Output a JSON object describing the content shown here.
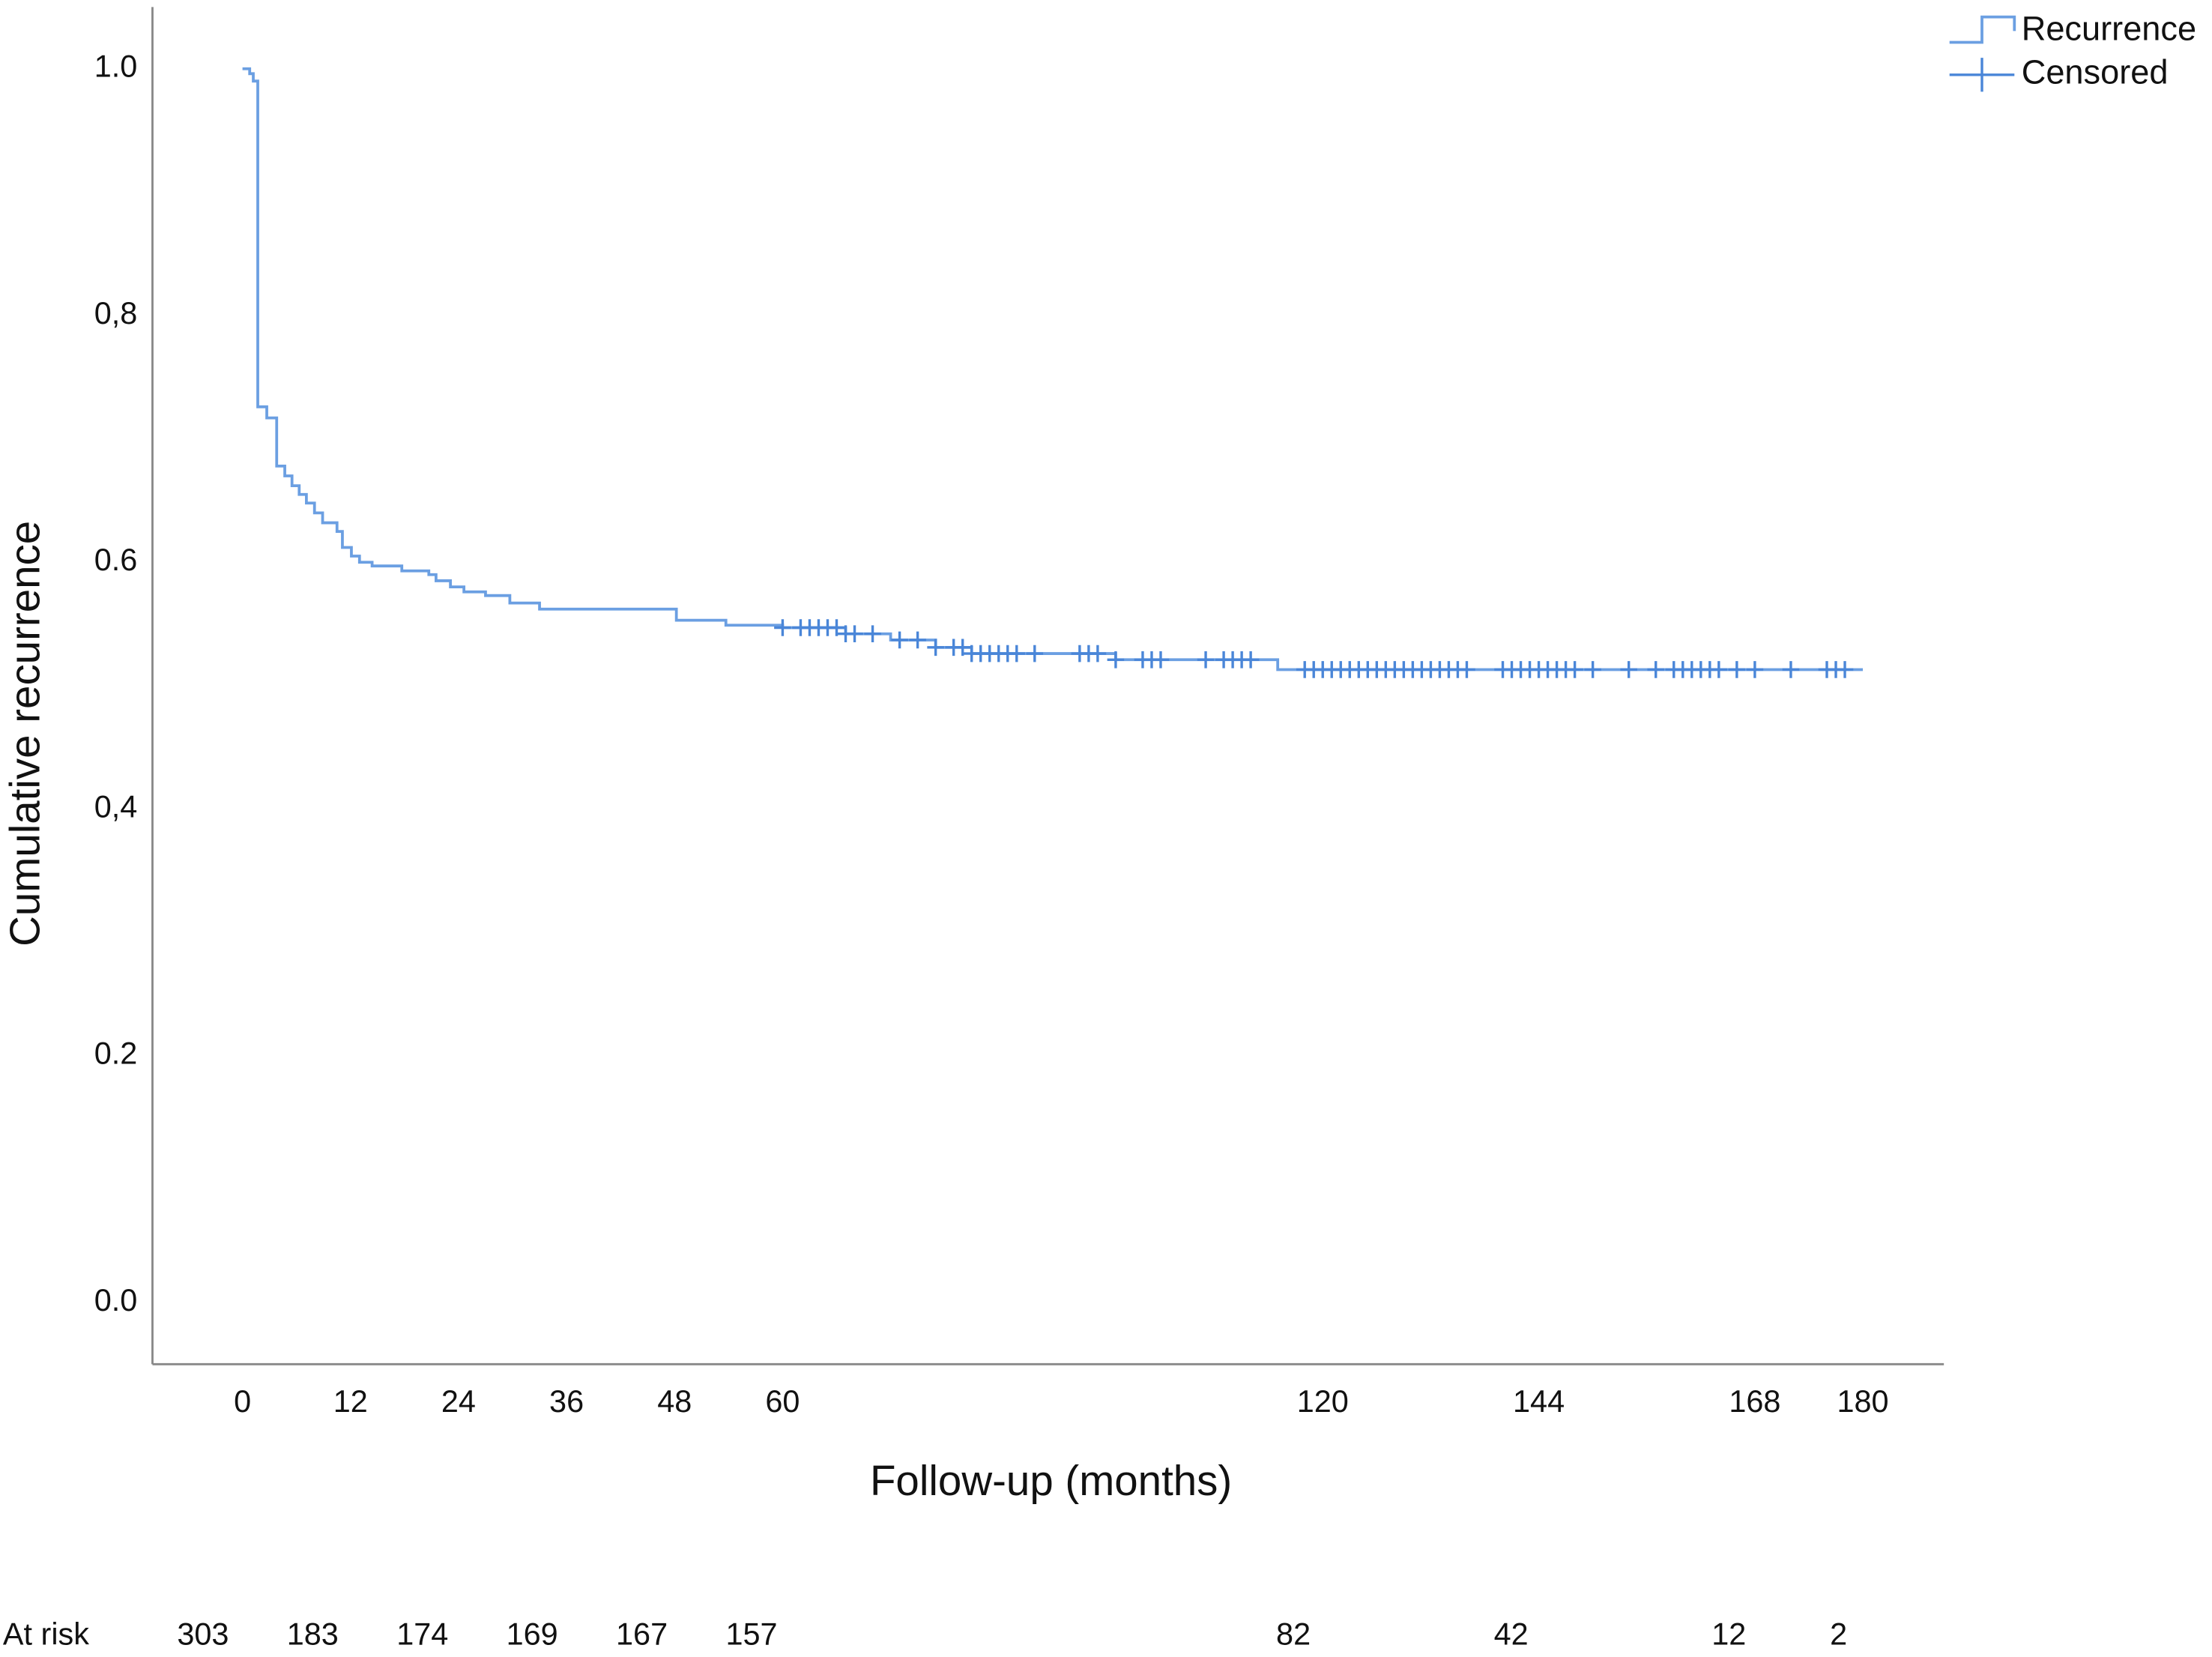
{
  "chart_data": {
    "type": "line",
    "xlabel": "Follow-up (months)",
    "ylabel": "Cumulative recurrence",
    "xlim": [
      -10,
      189
    ],
    "ylim": [
      -0.05,
      1.05
    ],
    "xticks": [
      0,
      12,
      24,
      36,
      48,
      60,
      120,
      144,
      168,
      180
    ],
    "yticks": [
      {
        "value": 0,
        "label": "0.0"
      },
      0.2,
      {
        "value": 0.4,
        "label": "0,4"
      },
      0.6,
      {
        "value": 0.8,
        "label": "0,8"
      },
      {
        "value": 1,
        "label": "1.0"
      }
    ],
    "grid": false,
    "legend": "upper right",
    "series": [
      {
        "name": "Recurrence",
        "color": "#6b9fe2",
        "drawstyle": "steps",
        "x": [
          0,
          0.8,
          1.2,
          1.7,
          2.7,
          3.8,
          4.7,
          5.5,
          6.3,
          7.1,
          8.0,
          8.9,
          10.5,
          11.1,
          12.1,
          13.0,
          14.4,
          17.7,
          20.7,
          21.5,
          23.1,
          24.6,
          27.0,
          29.7,
          33.0,
          48.2,
          53.7,
          60,
          67,
          72,
          77,
          81,
          97,
          115,
          180
        ],
        "values": [
          1.0,
          0.996,
          0.99,
          0.726,
          0.717,
          0.678,
          0.67,
          0.662,
          0.655,
          0.648,
          0.64,
          0.632,
          0.625,
          0.612,
          0.605,
          0.6,
          0.597,
          0.593,
          0.59,
          0.585,
          0.58,
          0.576,
          0.573,
          0.567,
          0.562,
          0.553,
          0.549,
          0.547,
          0.542,
          0.537,
          0.531,
          0.526,
          0.521,
          0.513,
          0.513
        ]
      },
      {
        "name": "Censored",
        "color": "#4a86d8",
        "marker": "plus",
        "x": [
          60,
          62,
          63,
          64,
          65,
          66,
          67,
          68,
          70,
          73,
          75,
          77,
          79,
          80,
          81,
          82,
          83,
          84,
          85,
          86,
          88,
          93,
          94,
          95,
          97,
          100,
          101,
          102,
          107,
          109,
          110,
          111,
          112,
          118,
          119,
          120,
          121,
          122,
          123,
          124,
          125,
          126,
          127,
          128,
          129,
          130,
          131,
          132,
          133,
          134,
          135,
          136,
          140,
          141,
          142,
          143,
          144,
          145,
          146,
          147,
          148,
          150,
          154,
          157,
          159,
          160,
          161,
          162,
          163,
          164,
          166,
          168,
          172,
          176,
          177,
          178
        ],
        "values": [
          0.547,
          0.547,
          0.547,
          0.547,
          0.547,
          0.547,
          0.542,
          0.542,
          0.542,
          0.537,
          0.537,
          0.531,
          0.531,
          0.531,
          0.526,
          0.526,
          0.526,
          0.526,
          0.526,
          0.526,
          0.526,
          0.526,
          0.526,
          0.526,
          0.521,
          0.521,
          0.521,
          0.521,
          0.521,
          0.521,
          0.521,
          0.521,
          0.521,
          0.513,
          0.513,
          0.513,
          0.513,
          0.513,
          0.513,
          0.513,
          0.513,
          0.513,
          0.513,
          0.513,
          0.513,
          0.513,
          0.513,
          0.513,
          0.513,
          0.513,
          0.513,
          0.513,
          0.513,
          0.513,
          0.513,
          0.513,
          0.513,
          0.513,
          0.513,
          0.513,
          0.513,
          0.513,
          0.513,
          0.513,
          0.513,
          0.513,
          0.513,
          0.513,
          0.513,
          0.513,
          0.513,
          0.513,
          0.513,
          0.513,
          0.513,
          0.513
        ]
      }
    ],
    "at_risk": {
      "label": "At risk",
      "x": [
        0,
        12,
        24,
        36,
        48,
        60,
        120,
        144,
        168,
        180
      ],
      "values": [
        303,
        183,
        174,
        169,
        167,
        157,
        82,
        42,
        12,
        2
      ]
    }
  }
}
